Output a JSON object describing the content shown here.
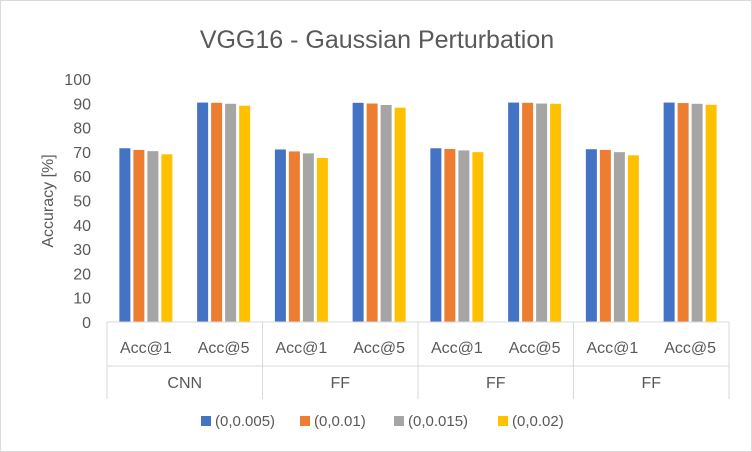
{
  "chart_data": {
    "type": "bar",
    "title": "VGG16 - Gaussian Perturbation",
    "xlabel": "",
    "ylabel": "Accuracy [%]",
    "ylim": [
      0,
      100
    ],
    "yticks": [
      0,
      10,
      20,
      30,
      40,
      50,
      60,
      70,
      80,
      90,
      100
    ],
    "grid": false,
    "legend_position": "bottom",
    "groups": [
      {
        "label": "CNN",
        "categories": [
          "Acc@1",
          "Acc@5"
        ]
      },
      {
        "label": "FF",
        "categories": [
          "Acc@1",
          "Acc@5"
        ]
      },
      {
        "label": "FF",
        "categories": [
          "Acc@1",
          "Acc@5"
        ]
      },
      {
        "label": "FF",
        "categories": [
          "Acc@1",
          "Acc@5"
        ]
      }
    ],
    "categories": [
      "Acc@1",
      "Acc@5",
      "Acc@1",
      "Acc@5",
      "Acc@1",
      "Acc@5",
      "Acc@1",
      "Acc@5"
    ],
    "series": [
      {
        "name": "(0,0.005)",
        "color": "#4472c4",
        "values": [
          71.5,
          90.3,
          71.0,
          90.2,
          71.5,
          90.3,
          71.1,
          90.3
        ]
      },
      {
        "name": "(0,0.01)",
        "color": "#ed7d31",
        "values": [
          70.8,
          90.2,
          70.2,
          89.9,
          71.2,
          90.2,
          70.8,
          90.1
        ]
      },
      {
        "name": "(0,0.015)",
        "color": "#a5a5a5",
        "values": [
          70.3,
          89.8,
          69.4,
          89.3,
          70.6,
          89.9,
          69.9,
          89.8
        ]
      },
      {
        "name": "(0,0.02)",
        "color": "#ffc000",
        "values": [
          69.0,
          89.0,
          67.5,
          88.2,
          69.9,
          89.8,
          68.6,
          89.4
        ]
      }
    ]
  }
}
